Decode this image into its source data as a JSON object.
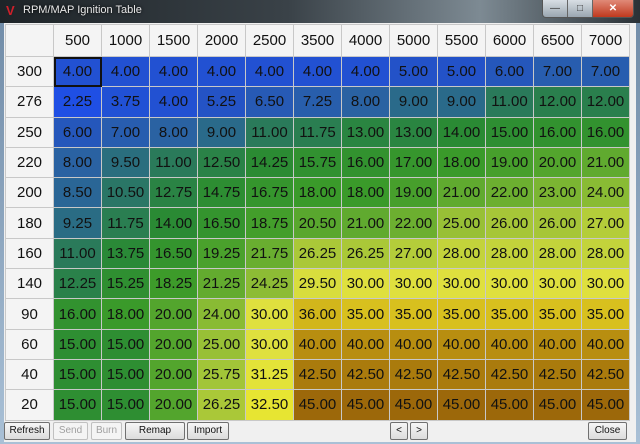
{
  "window": {
    "title": "RPM/MAP Ignition Table",
    "minimize": "—",
    "maximize": "□",
    "close": "✕"
  },
  "table": {
    "columns": [
      "500",
      "1000",
      "1500",
      "2000",
      "2500",
      "3500",
      "4000",
      "5000",
      "5500",
      "6000",
      "6500",
      "7000"
    ],
    "rows": [
      {
        "label": "300",
        "values": [
          "4.00",
          "4.00",
          "4.00",
          "4.00",
          "4.00",
          "4.00",
          "4.00",
          "5.00",
          "5.00",
          "6.00",
          "7.00",
          "7.00"
        ]
      },
      {
        "label": "276",
        "values": [
          "2.25",
          "3.75",
          "4.00",
          "5.25",
          "6.50",
          "7.25",
          "8.00",
          "9.00",
          "9.00",
          "11.00",
          "12.00",
          "12.00"
        ]
      },
      {
        "label": "250",
        "values": [
          "6.00",
          "7.00",
          "8.00",
          "9.00",
          "11.00",
          "11.75",
          "13.00",
          "13.00",
          "14.00",
          "15.00",
          "16.00",
          "16.00"
        ]
      },
      {
        "label": "220",
        "values": [
          "8.00",
          "9.50",
          "11.00",
          "12.50",
          "14.25",
          "15.75",
          "16.00",
          "17.00",
          "18.00",
          "19.00",
          "20.00",
          "21.00"
        ]
      },
      {
        "label": "200",
        "values": [
          "8.50",
          "10.50",
          "12.75",
          "14.75",
          "16.75",
          "18.00",
          "18.00",
          "19.00",
          "21.00",
          "22.00",
          "23.00",
          "24.00"
        ]
      },
      {
        "label": "180",
        "values": [
          "9.25",
          "11.75",
          "14.00",
          "16.50",
          "18.75",
          "20.50",
          "21.00",
          "22.00",
          "25.00",
          "26.00",
          "26.00",
          "27.00"
        ]
      },
      {
        "label": "160",
        "values": [
          "11.00",
          "13.75",
          "16.50",
          "19.25",
          "21.75",
          "26.25",
          "26.25",
          "27.00",
          "28.00",
          "28.00",
          "28.00",
          "28.00"
        ]
      },
      {
        "label": "140",
        "values": [
          "12.25",
          "15.25",
          "18.25",
          "21.25",
          "24.25",
          "29.50",
          "30.00",
          "30.00",
          "30.00",
          "30.00",
          "30.00",
          "30.00"
        ]
      },
      {
        "label": "90",
        "values": [
          "16.00",
          "18.00",
          "20.00",
          "24.00",
          "30.00",
          "36.00",
          "35.00",
          "35.00",
          "35.00",
          "35.00",
          "35.00",
          "35.00"
        ]
      },
      {
        "label": "60",
        "values": [
          "15.00",
          "15.00",
          "20.00",
          "25.00",
          "30.00",
          "40.00",
          "40.00",
          "40.00",
          "40.00",
          "40.00",
          "40.00",
          "40.00"
        ]
      },
      {
        "label": "40",
        "values": [
          "15.00",
          "15.00",
          "20.00",
          "25.75",
          "31.25",
          "42.50",
          "42.50",
          "42.50",
          "42.50",
          "42.50",
          "42.50",
          "42.50"
        ]
      },
      {
        "label": "20",
        "values": [
          "15.00",
          "15.00",
          "20.00",
          "26.25",
          "32.50",
          "45.00",
          "45.00",
          "45.00",
          "45.00",
          "45.00",
          "45.00",
          "45.00"
        ]
      }
    ],
    "selected_cell": {
      "row": 0,
      "col": 0
    },
    "color_scale": [
      [
        2,
        "#1f4fe6"
      ],
      [
        5,
        "#2352c8"
      ],
      [
        8,
        "#2a62a2"
      ],
      [
        11,
        "#2a7a5a"
      ],
      [
        14,
        "#2a8a34"
      ],
      [
        18,
        "#3a9a2a"
      ],
      [
        22,
        "#6caf30"
      ],
      [
        26,
        "#a6c638"
      ],
      [
        30,
        "#dfe03e"
      ],
      [
        33,
        "#e8e630"
      ],
      [
        35,
        "#d8c01e"
      ],
      [
        40,
        "#b88e10"
      ],
      [
        45,
        "#9c680a"
      ]
    ]
  },
  "buttons": {
    "refresh": "Refresh",
    "send": "Send",
    "burn": "Burn",
    "remap": "Remap",
    "import": "Import",
    "prev": "<",
    "next": ">",
    "close": "Close"
  }
}
